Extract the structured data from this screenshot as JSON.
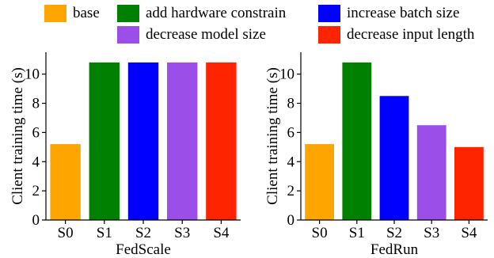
{
  "legend": [
    {
      "label": "base",
      "color": "#FFA500"
    },
    {
      "label": "add hardware constrain",
      "color": "#008000"
    },
    {
      "label": "increase batch size",
      "color": "#0000FF"
    },
    {
      "label": "decrease model size",
      "color": "#9B4FE8"
    },
    {
      "label": "decrease input length",
      "color": "#FF2400"
    }
  ],
  "chart_data": [
    {
      "type": "bar",
      "title": "",
      "xlabel": "FedScale",
      "ylabel": "Client training time (s)",
      "categories": [
        "S0",
        "S1",
        "S2",
        "S3",
        "S4"
      ],
      "values": [
        5.2,
        10.8,
        10.8,
        10.8,
        10.8
      ],
      "colors": [
        "#FFA500",
        "#008000",
        "#0000FF",
        "#9B4FE8",
        "#FF2400"
      ],
      "ylim": [
        0,
        11.5
      ],
      "yticks": [
        0,
        2,
        4,
        6,
        8,
        10
      ],
      "grid": false
    },
    {
      "type": "bar",
      "title": "",
      "xlabel": "FedRun",
      "ylabel": "Client training time (s)",
      "categories": [
        "S0",
        "S1",
        "S2",
        "S3",
        "S4"
      ],
      "values": [
        5.2,
        10.8,
        8.5,
        6.5,
        5.0
      ],
      "colors": [
        "#FFA500",
        "#008000",
        "#0000FF",
        "#9B4FE8",
        "#FF2400"
      ],
      "ylim": [
        0,
        11.5
      ],
      "yticks": [
        0,
        2,
        4,
        6,
        8,
        10
      ],
      "grid": false
    }
  ]
}
